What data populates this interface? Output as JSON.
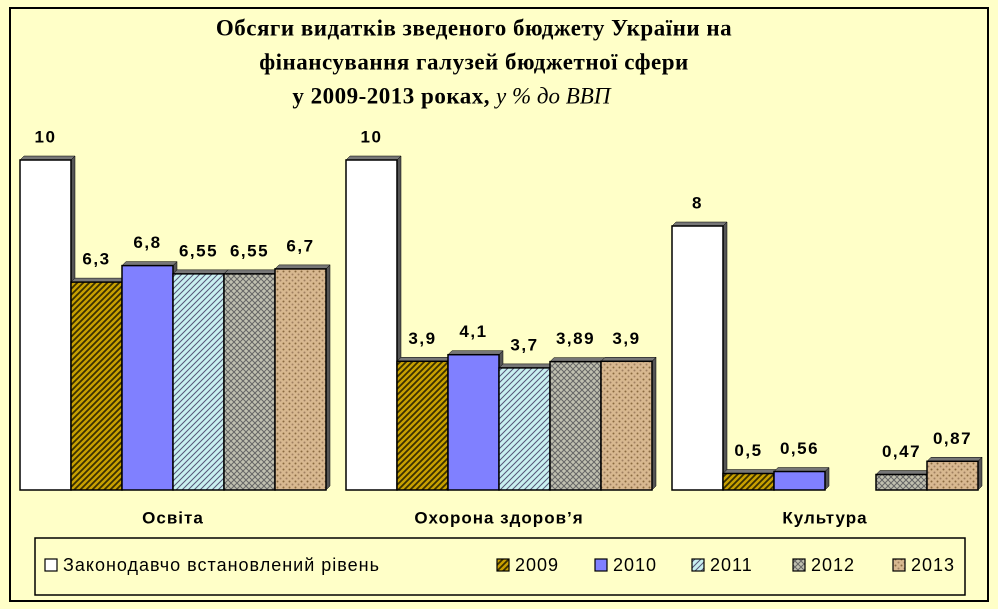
{
  "chart_data": {
    "type": "bar",
    "title_lines": [
      "Обсяги видатків зведеного бюджету України на",
      "фінансування галузей бюджетної сфери",
      "у 2009-2013 роках,"
    ],
    "subtitle": "у % до ВВП",
    "categories": [
      "Освіта",
      "Охорона здоров’я",
      "Культура"
    ],
    "series": [
      {
        "name": "Законодавчо встановлений рівень",
        "color": "#ffffff",
        "pattern": "solid",
        "values": [
          10,
          10,
          8
        ],
        "value_labels": [
          "10",
          "10",
          "8"
        ]
      },
      {
        "name": "2009",
        "color": "#c8a000",
        "pattern": "diagonal",
        "values": [
          6.3,
          3.9,
          0.5
        ],
        "value_labels": [
          "6,3",
          "3,9",
          "0,5"
        ]
      },
      {
        "name": "2010",
        "color": "#8080ff",
        "pattern": "solid",
        "values": [
          6.8,
          4.1,
          0.56
        ],
        "value_labels": [
          "6,8",
          "4,1",
          "0,56"
        ]
      },
      {
        "name": "2011",
        "color": "#c8f0f0",
        "pattern": "diagonal",
        "values": [
          6.55,
          3.7,
          null
        ],
        "value_labels": [
          "6,55",
          "3,7",
          null
        ]
      },
      {
        "name": "2012",
        "color": "#c0c0b0",
        "pattern": "crosshatch",
        "values": [
          6.55,
          3.89,
          0.47
        ],
        "value_labels": [
          "6,55",
          "3,89",
          "0,47"
        ]
      },
      {
        "name": "2013",
        "color": "#d8b890",
        "pattern": "dots",
        "values": [
          6.7,
          3.9,
          0.87
        ],
        "value_labels": [
          "6,7",
          "3,9",
          "0,87"
        ]
      }
    ]
  }
}
